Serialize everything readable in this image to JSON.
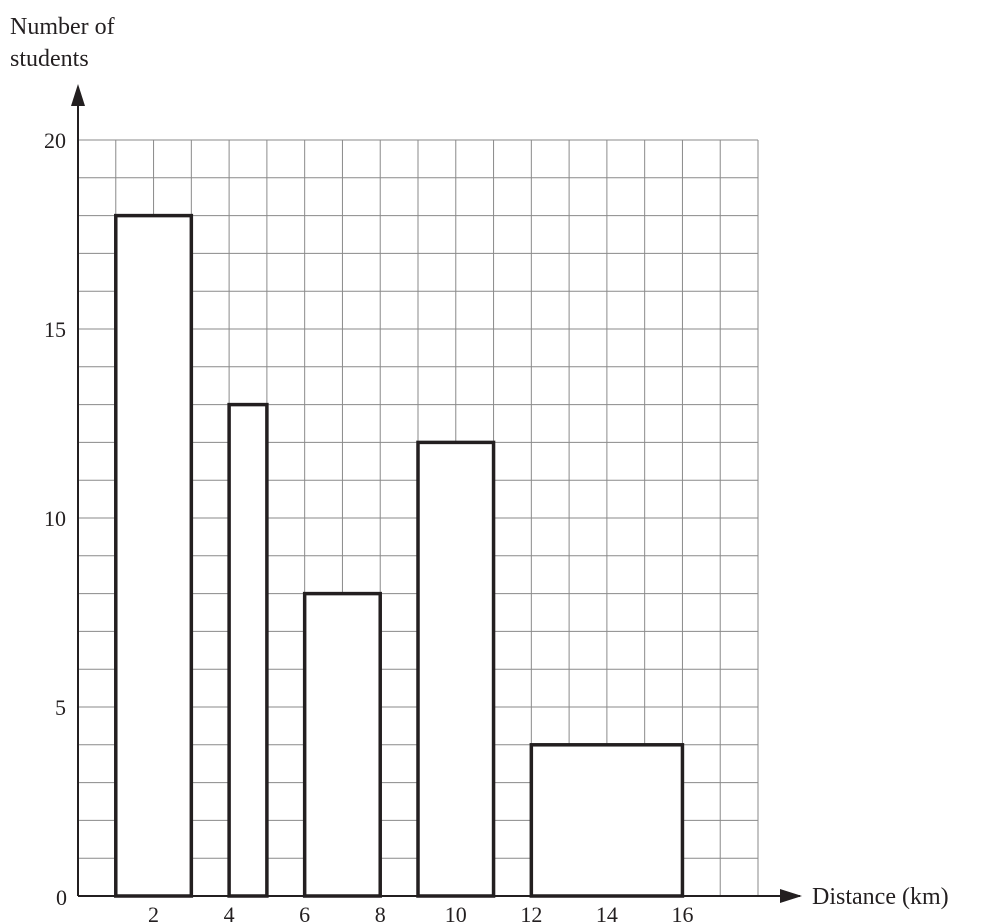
{
  "chart_data": {
    "type": "bar",
    "subtype": "histogram",
    "ylabel_line1": "Number of",
    "ylabel_line2": "students",
    "xlabel": "Distance (km)",
    "xlim": [
      0,
      18
    ],
    "ylim": [
      0,
      20
    ],
    "x_ticks": [
      2,
      4,
      6,
      8,
      10,
      12,
      14,
      16
    ],
    "y_ticks": [
      5,
      10,
      15,
      20
    ],
    "origin_label": "0",
    "grid": true,
    "grid_step_x": 1,
    "grid_step_y": 1,
    "bars": [
      {
        "x_start": 1,
        "x_end": 3,
        "value": 18
      },
      {
        "x_start": 4,
        "x_end": 5,
        "value": 13
      },
      {
        "x_start": 6,
        "x_end": 8,
        "value": 8
      },
      {
        "x_start": 9,
        "x_end": 11,
        "value": 12
      },
      {
        "x_start": 12,
        "x_end": 16,
        "value": 4
      }
    ]
  },
  "colors": {
    "grid": "#8a8a8a",
    "axis": "#231f20",
    "bar_stroke": "#231f20",
    "bar_fill": "#ffffff"
  }
}
